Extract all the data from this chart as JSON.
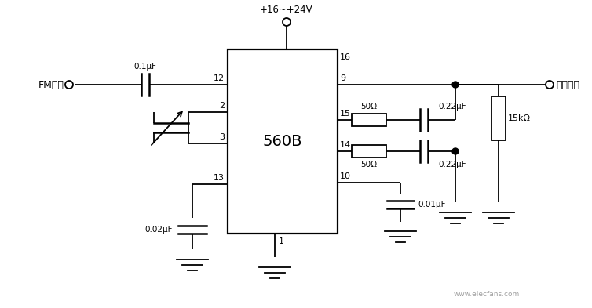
{
  "background_color": "#ffffff",
  "ic_label": "560B",
  "supply_label": "+16~+24V",
  "fm_input_label": "FM输入",
  "demod_output_label": "解调输出",
  "cap_01uF": "0.1μF",
  "cap_002uF": "0.02μF",
  "cap_001uF": "0.01μF",
  "cap_022uF_top": "0.22μF",
  "cap_022uF_bot": "0.22μF",
  "res_50_top": "50Ω",
  "res_50_bot": "50Ω",
  "res_15k": "15kΩ",
  "watermark": "www.elecfans.com",
  "text_color": "#000000",
  "line_color": "#000000",
  "lw": 1.3,
  "fig_width": 7.54,
  "fig_height": 3.93,
  "dpi": 100
}
